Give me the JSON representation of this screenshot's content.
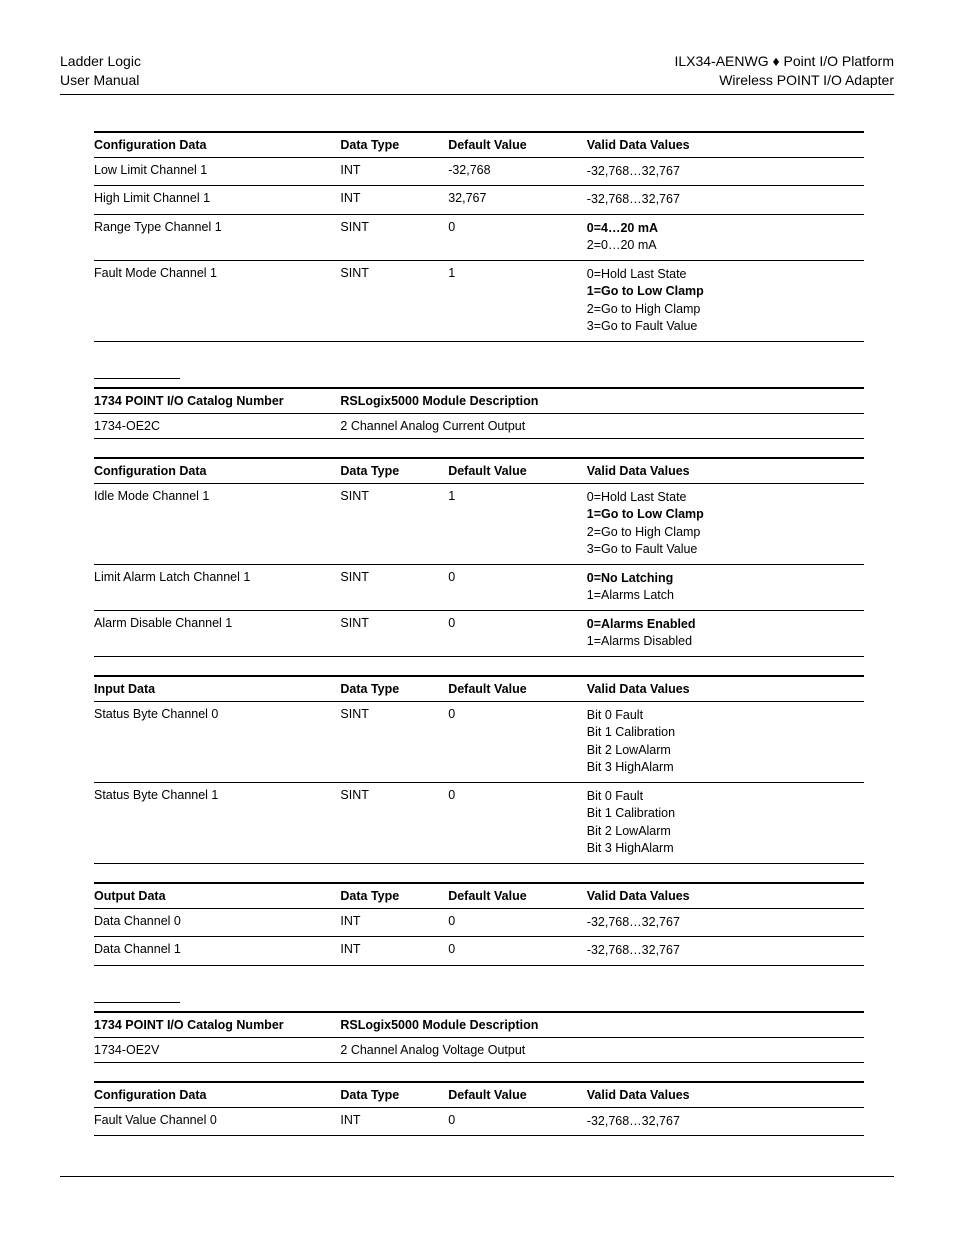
{
  "header": {
    "left_line1": "Ladder Logic",
    "left_line2": "User Manual",
    "right_line1": "ILX34-AENWG ♦ Point I/O Platform",
    "right_line2": "Wireless POINT I/O Adapter"
  },
  "labels": {
    "config_data": "Configuration Data",
    "data_type": "Data Type",
    "default_value": "Default Value",
    "valid_values": "Valid Data Values",
    "input_data": "Input Data",
    "output_data": "Output Data",
    "catalog_number": "1734 POINT I/O Catalog Number",
    "module_desc": "RSLogix5000 Module Description"
  },
  "table1": {
    "rows": [
      {
        "name": "Low Limit Channel 1",
        "dtype": "INT",
        "def": "-32,768",
        "values": [
          "-32,768…32,767"
        ],
        "bold": [
          false
        ]
      },
      {
        "name": "High Limit Channel 1",
        "dtype": "INT",
        "def": "32,767",
        "values": [
          "-32,768…32,767"
        ],
        "bold": [
          false
        ]
      },
      {
        "name": "Range Type Channel 1",
        "dtype": "SINT",
        "def": "0",
        "values": [
          "0=4…20 mA",
          "2=0…20 mA"
        ],
        "bold": [
          true,
          false
        ]
      },
      {
        "name": "Fault Mode Channel 1",
        "dtype": "SINT",
        "def": "1",
        "values": [
          "0=Hold Last State",
          "1=Go to Low Clamp",
          "2=Go to High Clamp",
          "3=Go to Fault Value"
        ],
        "bold": [
          false,
          true,
          false,
          false
        ]
      }
    ]
  },
  "catalog1": {
    "number": "1734-OE2C",
    "desc": "2 Channel Analog Current Output"
  },
  "table2": {
    "rows": [
      {
        "name": "Idle Mode Channel 1",
        "dtype": "SINT",
        "def": "1",
        "values": [
          "0=Hold Last State",
          "1=Go to Low Clamp",
          "2=Go to High Clamp",
          "3=Go to Fault Value"
        ],
        "bold": [
          false,
          true,
          false,
          false
        ]
      },
      {
        "name": "Limit Alarm Latch Channel 1",
        "dtype": "SINT",
        "def": "0",
        "values": [
          "0=No Latching",
          "1=Alarms Latch"
        ],
        "bold": [
          true,
          false
        ]
      },
      {
        "name": "Alarm Disable Channel 1",
        "dtype": "SINT",
        "def": "0",
        "values": [
          "0=Alarms Enabled",
          "1=Alarms Disabled"
        ],
        "bold": [
          true,
          false
        ]
      }
    ]
  },
  "table3": {
    "rows": [
      {
        "name": "Status Byte Channel 0",
        "dtype": "SINT",
        "def": "0",
        "values": [
          "Bit 0 Fault",
          "Bit 1 Calibration",
          "Bit 2 LowAlarm",
          "Bit 3 HighAlarm"
        ],
        "bold": [
          false,
          false,
          false,
          false
        ]
      },
      {
        "name": "Status Byte Channel 1",
        "dtype": "SINT",
        "def": "0",
        "values": [
          "Bit 0 Fault",
          "Bit 1 Calibration",
          "Bit 2 LowAlarm",
          "Bit 3 HighAlarm"
        ],
        "bold": [
          false,
          false,
          false,
          false
        ]
      }
    ]
  },
  "table4": {
    "rows": [
      {
        "name": "Data Channel 0",
        "dtype": "INT",
        "def": "0",
        "values": [
          "-32,768…32,767"
        ],
        "bold": [
          false
        ]
      },
      {
        "name": "Data Channel 1",
        "dtype": "INT",
        "def": "0",
        "values": [
          "-32,768…32,767"
        ],
        "bold": [
          false
        ]
      }
    ]
  },
  "catalog2": {
    "number": "1734-OE2V",
    "desc": "2 Channel Analog Voltage Output"
  },
  "table5": {
    "rows": [
      {
        "name": "Fault Value Channel 0",
        "dtype": "INT",
        "def": "0",
        "values": [
          "-32,768…32,767"
        ],
        "bold": [
          false
        ]
      }
    ]
  }
}
